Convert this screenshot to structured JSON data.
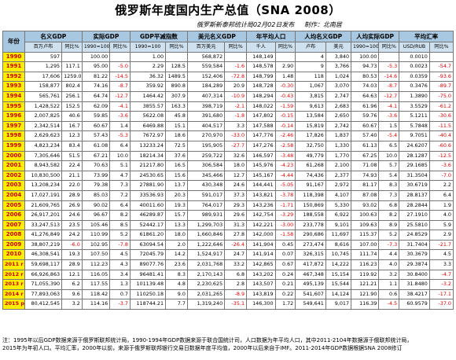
{
  "title": "俄罗斯年度国内生产总值（SNA 2008）",
  "source": {
    "publisher": "俄罗斯新泰邦统计局02月02日发布",
    "author": "制作：北南居"
  },
  "columns": {
    "year": "年份",
    "groups": [
      "名义GDP",
      "实际GDP",
      "GDP平减指数",
      "美元名义GDP",
      "年平均人口",
      "人均名义GDP",
      "人均实际GDP",
      "平均汇率"
    ],
    "sub": [
      "百万卢布",
      "同比%",
      "1990=100",
      "同比%",
      "1990=100",
      "同比%",
      "百万美元",
      "同比%",
      "千人",
      "同比%",
      "卢布",
      "美元",
      "1990=100",
      "同比%",
      "USD/RUB",
      "同比%"
    ]
  },
  "rows": [
    {
      "year": "1990",
      "c": [
        "597",
        "",
        "100.00",
        "",
        "1.00",
        "",
        "568,872",
        "",
        "148,149",
        "",
        "4",
        "3,840",
        "100.00",
        "",
        "0.0010",
        ""
      ]
    },
    {
      "year": "1991",
      "c": [
        "1,295",
        "117.1",
        "95.00",
        "-5.0",
        "2.29",
        "128.5",
        "559,584",
        "-1.6",
        "148,578",
        "2.90",
        "9",
        "3,766",
        "94.73",
        "-5.3",
        "0.0023",
        "-54.7"
      ]
    },
    {
      "year": "1992",
      "c": [
        "17,606",
        "1259.0",
        "81.22",
        "-14.5",
        "36.32",
        "1489.5",
        "152,406",
        "-72.8",
        "148,799",
        "1.48",
        "118",
        "1,024",
        "80.53",
        "-14.6",
        "0.0359",
        "-93.6"
      ]
    },
    {
      "year": "1993",
      "c": [
        "158,877",
        "802.4",
        "74.16",
        "-8.7",
        "359.92",
        "890.8",
        "184,289",
        "20.9",
        "148,728",
        "-0.30",
        "1,067",
        "3,070",
        "74.03",
        "-8.7",
        "0.3476",
        "-89.7"
      ]
    },
    {
      "year": "1994",
      "c": [
        "565,761",
        "256.1",
        "64.74",
        "-12.7",
        "1464.42",
        "307.9",
        "407,314",
        "-10.9",
        "148,294",
        "-0.43",
        "3,815",
        "2,747",
        "64.63",
        "-12.7",
        "1.3890",
        "-75.0"
      ]
    },
    {
      "year": "1995",
      "c": [
        "1,428,522",
        "152.5",
        "62.09",
        "-4.1",
        "3855.57",
        "163.3",
        "398,719",
        "-2.1",
        "148,022",
        "-1.59",
        "9,613",
        "2,683",
        "61.96",
        "-4.1",
        "3.5529",
        "-61.2"
      ]
    },
    {
      "year": "1996",
      "c": [
        "2,007,825",
        "40.6",
        "59.85",
        "-3.6",
        "5622.08",
        "45.8",
        "391,680",
        "-1.8",
        "147,802",
        "-0.15",
        "13,584",
        "2,650",
        "59.76",
        "-3.6",
        "5.1211",
        "-30.6"
      ]
    },
    {
      "year": "1997",
      "c": [
        "2,342,514",
        "16.7",
        "60.67",
        "1.4",
        "6469.88",
        "15.1",
        "404,517",
        "3.3",
        "147,588",
        "-0.14",
        "15,819",
        "2,742",
        "60.67",
        "1.5",
        "5.7848",
        "-11.5"
      ]
    },
    {
      "year": "1998",
      "c": [
        "2,629,623",
        "12.3",
        "57.43",
        "-5.3",
        "7672.97",
        "18.6",
        "270,970",
        "-33.0",
        "147,776",
        "-2.46",
        "17,826",
        "1,837",
        "57.40",
        "-5.4",
        "9.7051",
        "-40.4"
      ]
    },
    {
      "year": "1999",
      "c": [
        "4,823,234",
        "83.4",
        "61.08",
        "6.4",
        "13233.24",
        "72.5",
        "195,905",
        "-27.7",
        "147,276",
        "-2.58",
        "32,750",
        "1,330",
        "61.13",
        "6.5",
        "24.6207",
        "-60.6"
      ]
    },
    {
      "year": "2000",
      "c": [
        "7,305,646",
        "51.5",
        "67.21",
        "10.0",
        "18214.34",
        "37.6",
        "259,722",
        "32.6",
        "146,597",
        "-3.48",
        "49,779",
        "1,770",
        "67.25",
        "10.0",
        "28.1287",
        "-12.5"
      ]
    },
    {
      "year": "2001",
      "c": [
        "8,943,582",
        "22.4",
        "70.63",
        "5.1",
        "21217.80",
        "16.5",
        "306,584",
        "18.0",
        "145,976",
        "-4.23",
        "61,268",
        "2,100",
        "71.08",
        "5.7",
        "29.1685",
        "-3.6"
      ]
    },
    {
      "year": "2002",
      "c": [
        "10,830,500",
        "21.1",
        "73.99",
        "4.7",
        "24530.65",
        "15.6",
        "345,466",
        "12.7",
        "145,167",
        "-4.44",
        "74,436",
        "2,377",
        "74.93",
        "5.4",
        "31.3504",
        "-7.0"
      ]
    },
    {
      "year": "2003",
      "c": [
        "13,208,234",
        "22.0",
        "79.38",
        "7.3",
        "27881.90",
        "13.7",
        "430,348",
        "24.6",
        "144,441",
        "-5.05",
        "91,167",
        "2,972",
        "81.17",
        "8.3",
        "30.6719",
        "2.2"
      ]
    },
    {
      "year": "2004",
      "c": [
        "17,027,191",
        "28.9",
        "85.03",
        "7.2",
        "33536.93",
        "20.3",
        "591,017",
        "37.3",
        "143,821",
        "-3.78",
        "118,398",
        "4,107",
        "87.08",
        "7.3",
        "28.8137",
        "6.4"
      ]
    },
    {
      "year": "2005",
      "c": [
        "21,609,765",
        "26.9",
        "90.02",
        "6.4",
        "40011.60",
        "19.3",
        "764,017",
        "29.3",
        "143,236",
        "-1.71",
        "150,869",
        "5,330",
        "93.02",
        "6.8",
        "28.2844",
        "1.9"
      ]
    },
    {
      "year": "2006",
      "c": [
        "26,917,201",
        "24.6",
        "96.67",
        "8.2",
        "46289.87",
        "15.7",
        "989,931",
        "29.6",
        "142,754",
        "-3.29",
        "188,558",
        "6,922",
        "100.63",
        "8.2",
        "27.1910",
        "4.0"
      ]
    },
    {
      "year": "2007",
      "c": [
        "33,247,513",
        "23.5",
        "105.46",
        "8.5",
        "52442.17",
        "13.3",
        "1,299,703",
        "31.3",
        "142,221",
        "-3.00",
        "233,778",
        "9,101",
        "109.63",
        "8.9",
        "25.5810",
        "5.9"
      ]
    },
    {
      "year": "2008",
      "c": [
        "41,276,849",
        "24.2",
        "110.99",
        "5.2",
        "61861.20",
        "18.0",
        "1,660,846",
        "27.8",
        "142,000",
        "-1.58",
        "290,686",
        "11,697",
        "115.37",
        "5.2",
        "24.8529",
        "2.9"
      ]
    },
    {
      "year": "2009",
      "c": [
        "38,807,219",
        "-6.0",
        "102.95",
        "-7.8",
        "63094.54",
        "2.0",
        "1,222,646",
        "-26.4",
        "141,904",
        "0.45",
        "273,474",
        "8,616",
        "107.00",
        "-7.3",
        "31.7404",
        "-21.7"
      ]
    },
    {
      "year": "2010",
      "c": [
        "46,308,541",
        "19.3",
        "107.50",
        "4.5",
        "72045.79",
        "14.2",
        "1,524,917",
        "24.7",
        "141,914",
        "0.07",
        "326,315",
        "10,745",
        "111.74",
        "4.4",
        "30.3679",
        "4.5"
      ]
    },
    {
      "year": "2011 r",
      "c": [
        "59,698,117",
        "28.9",
        "112.23",
        "4.3",
        "89077.76",
        "23.6",
        "2,031,768",
        "33.2",
        "142,865",
        "0.67",
        "417,872",
        "14,222",
        "116.23",
        "4.0",
        "29.3874",
        "3.3"
      ]
    },
    {
      "year": "2012 r",
      "c": [
        "66,926,863",
        "12.1",
        "116.05",
        "3.4",
        "96481.41",
        "8.3",
        "2,170,143",
        "6.8",
        "143,202",
        "0.24",
        "467,348",
        "15,154",
        "119.92",
        "3.2",
        "30.8400",
        "-4.7"
      ]
    },
    {
      "year": "2013 r",
      "c": [
        "71,055,390",
        "6.2",
        "117.55",
        "1.3",
        "101139.48",
        "4.8",
        "2,230,625",
        "2.8",
        "143,507",
        "0.21",
        "495,139",
        "15,544",
        "121.21",
        "1.1",
        "31.8480",
        "-3.2"
      ]
    },
    {
      "year": "2014 r",
      "c": [
        "77,893,063",
        "9.6",
        "118.42",
        "0.7",
        "110250.18",
        "9.0",
        "2,031,265",
        "-8.9",
        "143,819",
        "0.22",
        "541,607",
        "14,124",
        "121.90",
        "0.6",
        "38.4217",
        "-17.1"
      ]
    },
    {
      "year": "2015 p",
      "c": [
        "80,412,545",
        "3.2",
        "114.16",
        "-3.7",
        "118744.21",
        "7.7",
        "1,319,240",
        "-35.1",
        "146,300",
        "1.72",
        "549,641",
        "9,017",
        "116.39",
        "-4.5",
        "60.9579",
        "-37.0"
      ]
    }
  ],
  "notes": [
    "注：1995年以后GDP数据来源于俄罗斯联邦统计局，1990-1994年GDP数据来源于联合国统计司，人口数据为年平均人口，其中2011-2104年数据源于俄联邦统计局，",
    "2015年为年初人口。平均汇率，2000年以前，来源于俄罗斯联邦银行交易日数据年度平均值，2000年以后来自于IMF。2011-2014年GDP数据根据SNA 2008修订"
  ]
}
